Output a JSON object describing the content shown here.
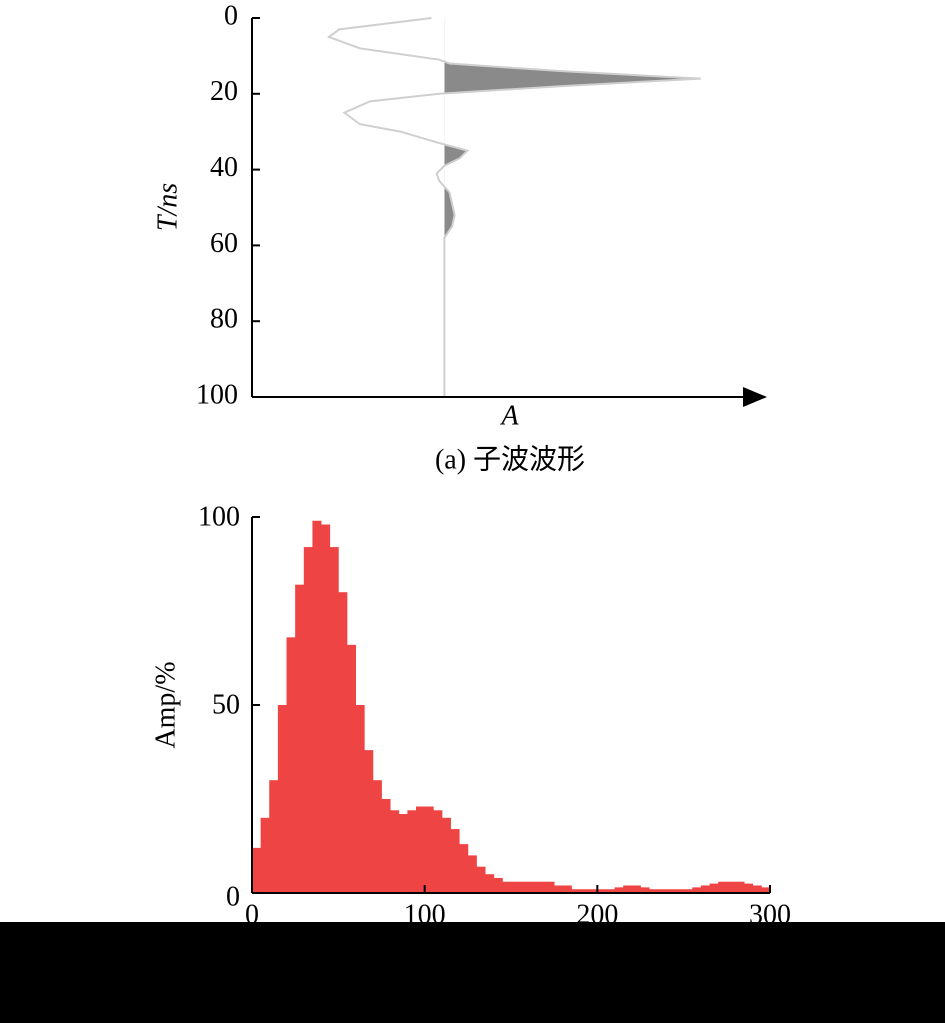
{
  "chart_data": [
    {
      "type": "wavelet",
      "caption": "(a) 子波波形",
      "y_label": "T/ns",
      "x_label": "A",
      "ylim": [
        0,
        100
      ],
      "yticks": [
        0,
        20,
        40,
        60,
        80,
        100
      ],
      "invert_y": true,
      "xlim": [
        -0.75,
        1.25
      ],
      "line_color": "#cfcfcf",
      "fill_color": "#8a8a8a",
      "y": [
        0,
        3,
        5,
        8,
        11,
        12,
        14,
        16,
        18,
        20,
        22,
        25,
        28,
        30,
        33,
        35,
        37,
        39,
        41,
        43,
        46,
        49,
        52,
        55,
        58,
        60,
        100
      ],
      "values": [
        -0.05,
        -0.41,
        -0.45,
        -0.33,
        -0.02,
        0.02,
        0.45,
        1.0,
        0.45,
        -0.02,
        -0.29,
        -0.39,
        -0.33,
        -0.17,
        -0.02,
        0.09,
        0.06,
        0,
        -0.03,
        -0.02,
        0.02,
        0.03,
        0.04,
        0.03,
        0,
        0,
        0
      ]
    },
    {
      "type": "histogram",
      "y_label": "Amp/%",
      "color": "#ee4444",
      "xlim": [
        0,
        300
      ],
      "xticks": [
        0,
        100,
        200,
        300
      ],
      "ylim": [
        0,
        100
      ],
      "yticks": [
        0,
        50,
        100
      ],
      "bins": [
        0,
        5,
        10,
        15,
        20,
        25,
        30,
        35,
        40,
        45,
        50,
        55,
        60,
        65,
        70,
        75,
        80,
        85,
        90,
        95,
        100,
        105,
        110,
        115,
        120,
        125,
        130,
        135,
        140,
        145,
        150,
        155,
        160,
        165,
        170,
        175,
        180,
        185,
        190,
        195,
        200,
        205,
        210,
        215,
        220,
        225,
        230,
        235,
        240,
        245,
        250,
        255,
        260,
        265,
        270,
        275,
        280,
        285,
        290,
        295,
        300
      ],
      "values": [
        12,
        20,
        30,
        50,
        68,
        82,
        92,
        99,
        98,
        92,
        80,
        66,
        50,
        38,
        30,
        25,
        22,
        21,
        22,
        23,
        23,
        22,
        20,
        17,
        13,
        10,
        7,
        5,
        4,
        3,
        3,
        3,
        3,
        3,
        3,
        2,
        2,
        1,
        1,
        1,
        1,
        1,
        1.5,
        2,
        2,
        1.5,
        1,
        1,
        1,
        1,
        1,
        1.5,
        2,
        2.5,
        3,
        3,
        3,
        2.5,
        2,
        1.5
      ]
    }
  ]
}
